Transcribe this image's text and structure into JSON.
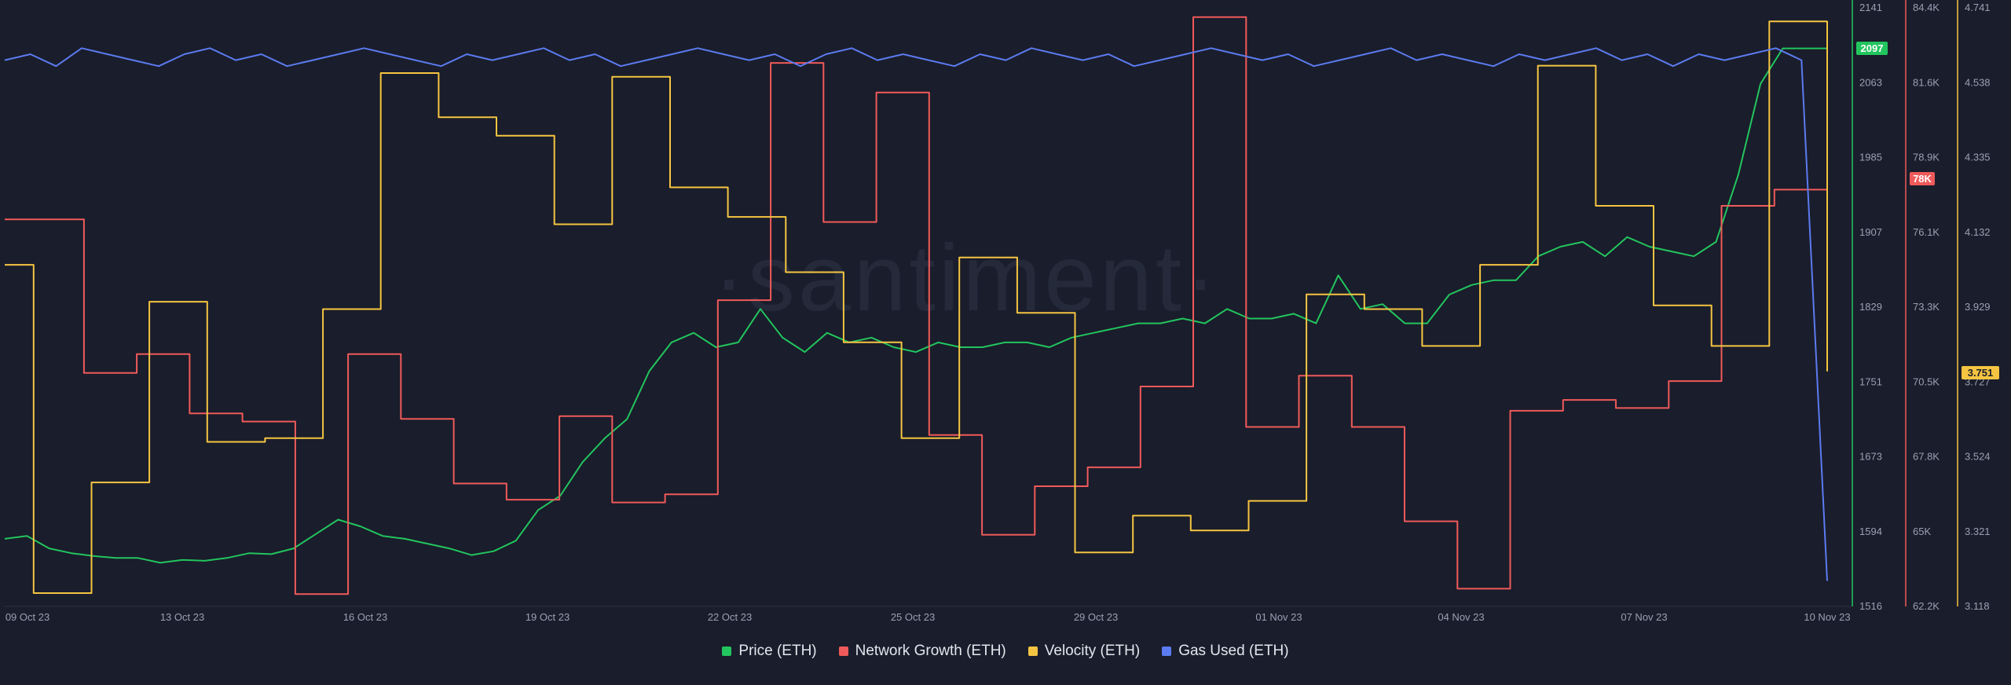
{
  "watermark": "·santiment·",
  "chart_data": {
    "type": "line",
    "x_tick_labels": [
      "09 Oct 23",
      "13 Oct 23",
      "16 Oct 23",
      "19 Oct 23",
      "22 Oct 23",
      "25 Oct 23",
      "29 Oct 23",
      "01 Nov 23",
      "04 Nov 23",
      "07 Nov 23",
      "10 Nov 23"
    ],
    "x_range": [
      "2023-10-09",
      "2023-11-10"
    ],
    "grid": false,
    "legend_position": "bottom",
    "axes": [
      {
        "id": "price",
        "ticks": [
          "2141",
          "2063",
          "1985",
          "1907",
          "1829",
          "1751",
          "1673",
          "1594",
          "1516"
        ],
        "range": [
          1516,
          2141
        ],
        "current_label": "2097",
        "color": "#22c55e"
      },
      {
        "id": "network_growth",
        "ticks": [
          "84.4K",
          "81.6K",
          "78.9K",
          "76.1K",
          "73.3K",
          "70.5K",
          "67.8K",
          "65K",
          "62.2K"
        ],
        "range": [
          62200,
          84400
        ],
        "current_label": "78K",
        "color": "#ef5a5a"
      },
      {
        "id": "velocity",
        "ticks": [
          "4.741",
          "4.538",
          "4.335",
          "4.132",
          "3.929",
          "3.727",
          "3.524",
          "3.321",
          "3.118"
        ],
        "range": [
          3.118,
          4.741
        ],
        "current_label": "3.751",
        "color": "#f5c542"
      }
    ],
    "series": [
      {
        "name": "Price (ETH)",
        "color": "#22c55e",
        "axis": "price",
        "step": false,
        "values": [
          1585,
          1588,
          1575,
          1570,
          1567,
          1565,
          1565,
          1560,
          1563,
          1562,
          1565,
          1570,
          1569,
          1575,
          1590,
          1605,
          1598,
          1588,
          1585,
          1580,
          1575,
          1568,
          1572,
          1583,
          1615,
          1630,
          1665,
          1690,
          1710,
          1760,
          1790,
          1800,
          1785,
          1790,
          1825,
          1795,
          1780,
          1800,
          1790,
          1795,
          1785,
          1780,
          1790,
          1785,
          1785,
          1790,
          1790,
          1785,
          1795,
          1800,
          1805,
          1810,
          1810,
          1815,
          1810,
          1825,
          1815,
          1815,
          1820,
          1810,
          1860,
          1825,
          1830,
          1810,
          1810,
          1840,
          1850,
          1855,
          1855,
          1880,
          1890,
          1895,
          1880,
          1900,
          1890,
          1885,
          1880,
          1895,
          1965,
          2060,
          2097,
          2097,
          2097
        ]
      },
      {
        "name": "Network Growth (ETH)",
        "color": "#ef5a5a",
        "axis": "network_growth",
        "step": true,
        "values": [
          76500,
          76500,
          76500,
          70800,
          70800,
          71500,
          71500,
          69300,
          69300,
          69000,
          69000,
          62600,
          62600,
          71500,
          71500,
          69100,
          69100,
          66700,
          66700,
          66100,
          66100,
          69200,
          69200,
          66000,
          66000,
          66300,
          66300,
          73500,
          73500,
          82300,
          82300,
          76400,
          76400,
          81200,
          81200,
          68500,
          68500,
          64800,
          64800,
          66600,
          66600,
          67300,
          67300,
          70300,
          70300,
          84000,
          84000,
          68800,
          68800,
          70700,
          70700,
          68800,
          68800,
          65300,
          65300,
          62800,
          62800,
          69400,
          69400,
          69800,
          69800,
          69500,
          69500,
          70500,
          70500,
          77000,
          77000,
          77600,
          77600,
          78000
        ]
      },
      {
        "name": "Velocity (ETH)",
        "color": "#f5c542",
        "axis": "velocity",
        "step": true,
        "values": [
          4.04,
          3.15,
          3.15,
          3.45,
          3.45,
          3.94,
          3.94,
          3.56,
          3.56,
          3.57,
          3.57,
          3.92,
          3.92,
          4.56,
          4.56,
          4.44,
          4.44,
          4.39,
          4.39,
          4.15,
          4.15,
          4.55,
          4.55,
          4.25,
          4.25,
          4.17,
          4.17,
          4.02,
          4.02,
          3.83,
          3.83,
          3.57,
          3.57,
          4.06,
          4.06,
          3.91,
          3.91,
          3.26,
          3.26,
          3.36,
          3.36,
          3.32,
          3.32,
          3.4,
          3.4,
          3.96,
          3.96,
          3.92,
          3.92,
          3.82,
          3.82,
          4.04,
          4.04,
          4.58,
          4.58,
          4.2,
          4.2,
          3.93,
          3.93,
          3.82,
          3.82,
          4.7,
          4.7,
          3.751
        ]
      },
      {
        "name": "Gas Used (ETH)",
        "color": "#5b7bf0",
        "axis": "gas_used",
        "step": false,
        "values": [
          91,
          92,
          90,
          93,
          92,
          91,
          90,
          92,
          93,
          91,
          92,
          90,
          91,
          92,
          93,
          92,
          91,
          90,
          92,
          91,
          92,
          93,
          91,
          92,
          90,
          91,
          92,
          93,
          92,
          91,
          92,
          90,
          92,
          93,
          91,
          92,
          91,
          90,
          92,
          91,
          93,
          92,
          91,
          92,
          90,
          91,
          92,
          93,
          92,
          91,
          92,
          90,
          91,
          92,
          93,
          91,
          92,
          91,
          90,
          92,
          91,
          92,
          93,
          91,
          92,
          90,
          92,
          91,
          92,
          93,
          91,
          4
        ]
      }
    ]
  },
  "legend": [
    {
      "label": "Price (ETH)",
      "color": "#22c55e"
    },
    {
      "label": "Network Growth (ETH)",
      "color": "#ef5a5a"
    },
    {
      "label": "Velocity (ETH)",
      "color": "#f5c542"
    },
    {
      "label": "Gas Used (ETH)",
      "color": "#5b7bf0"
    }
  ]
}
